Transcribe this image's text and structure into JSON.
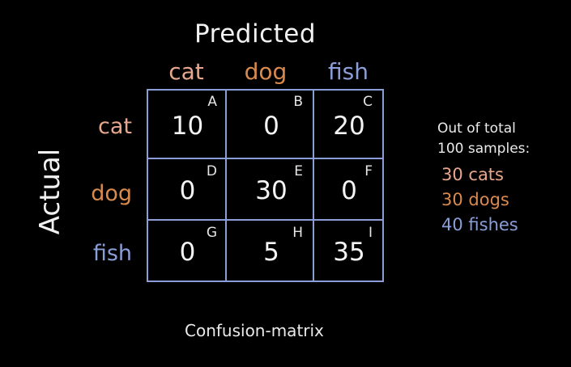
{
  "titles": {
    "predicted": "Predicted",
    "actual": "Actual",
    "caption": "Confusion-matrix"
  },
  "classes": [
    "cat",
    "dog",
    "fish"
  ],
  "colors": {
    "cat": "#e8a78c",
    "dog": "#d98a4e",
    "fish": "#8a9ed8",
    "grid": "#8a9ed8",
    "text": "#f2f2f2"
  },
  "matrix": {
    "rows": [
      {
        "actual": "cat",
        "cells": [
          {
            "value": "10",
            "letter": "A"
          },
          {
            "value": "0",
            "letter": "B"
          },
          {
            "value": "20",
            "letter": "C"
          }
        ]
      },
      {
        "actual": "dog",
        "cells": [
          {
            "value": "0",
            "letter": "D"
          },
          {
            "value": "30",
            "letter": "E"
          },
          {
            "value": "0",
            "letter": "F"
          }
        ]
      },
      {
        "actual": "fish",
        "cells": [
          {
            "value": "0",
            "letter": "G"
          },
          {
            "value": "5",
            "letter": "H"
          },
          {
            "value": "35",
            "letter": "I"
          }
        ]
      }
    ]
  },
  "summary": {
    "line1": "Out of total",
    "line2": "100 samples:",
    "counts": [
      {
        "text": "30 cats",
        "class": "cat"
      },
      {
        "text": "30 dogs",
        "class": "dog"
      },
      {
        "text": "40 fishes",
        "class": "fish"
      }
    ]
  }
}
